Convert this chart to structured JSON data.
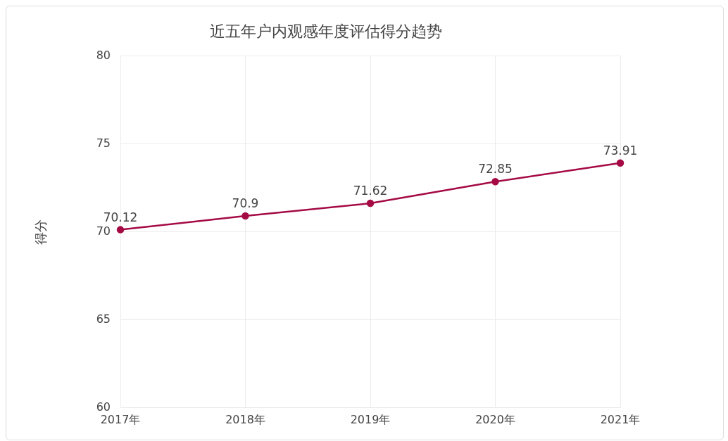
{
  "chart_data": {
    "type": "line",
    "title": "近五年户内观感年度评估得分趋势",
    "ylabel": "得分",
    "categories": [
      "2017年",
      "2018年",
      "2019年",
      "2020年",
      "2021年"
    ],
    "series": [
      {
        "color": "#a50a45",
        "values": [
          70.12,
          70.9,
          71.62,
          72.85,
          73.91
        ]
      }
    ],
    "ylim": [
      60,
      80
    ],
    "yticks": [
      60,
      65,
      70,
      75,
      80
    ],
    "grid": true,
    "legend": false,
    "marker": "circle",
    "line_style": "solid",
    "data_labels": true
  }
}
